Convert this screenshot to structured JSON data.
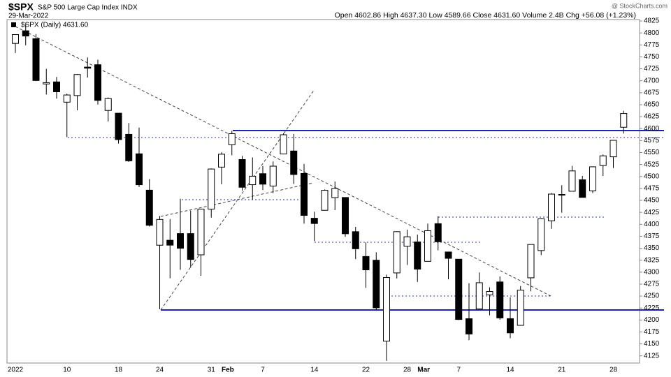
{
  "header": {
    "symbol": "$SPX",
    "name": "S&P 500 Large Cap Index INDX",
    "date": "29-Mar-2022",
    "quote": "Open 4602.86  High 4637.30  Low 4589.66  Close 4631.60  Volume 2.4B  Chg +56.08 (+1.23%)",
    "credit": "@ StockCharts.com",
    "legend": "$SPX (Daily) 4631.60"
  },
  "chart_data": {
    "type": "candlestick",
    "categories": [
      "2022",
      null,
      null,
      null,
      null,
      "10",
      null,
      null,
      null,
      null,
      "18",
      null,
      null,
      null,
      "24",
      null,
      null,
      null,
      null,
      "31",
      "Feb",
      null,
      null,
      null,
      "7",
      null,
      null,
      null,
      null,
      "14",
      null,
      null,
      null,
      null,
      "22",
      null,
      null,
      null,
      "28",
      "Mar",
      null,
      null,
      null,
      "7",
      null,
      null,
      null,
      null,
      "14",
      null,
      null,
      null,
      null,
      "21",
      null,
      null,
      null,
      null,
      "28",
      null
    ],
    "open": [
      4778.14,
      4804.51,
      4787.99,
      4693.39,
      4697.66,
      4655.34,
      4669.14,
      4728.59,
      4733.56,
      4637.99,
      4632.24,
      4588.03,
      4547.35,
      4471.38,
      4356.32,
      4366.64,
      4380.58,
      4380.5,
      4336.19,
      4431.79,
      4519.57,
      4566.39,
      4535.41,
      4482.79,
      4505.75,
      4480.02,
      4547.0,
      4553.24,
      4506.27,
      4412.61,
      4429.28,
      4455.75,
      4456.06,
      4384.57,
      4332.74,
      4324.93,
      4155.77,
      4298.38,
      4354.17,
      4363.14,
      4322.56,
      4401.31,
      4342.12,
      4327.01,
      4202.66,
      4223.1,
      4252.55,
      4279.5,
      4202.75,
      4188.82,
      4288.14,
      4345.11,
      4407.34,
      4462.4,
      4469.1,
      4493.1,
      4469.98,
      4522.91,
      4541.09,
      4602.86
    ],
    "high": [
      4796.64,
      4818.62,
      4797.7,
      4725.01,
      4707.95,
      4673.02,
      4714.13,
      4748.83,
      4744.13,
      4665.13,
      4632.24,
      4611.55,
      4602.11,
      4494.52,
      4417.35,
      4411.01,
      4453.23,
      4428.74,
      4432.72,
      4516.89,
      4550.49,
      4595.31,
      4542.88,
      4539.66,
      4521.86,
      4531.32,
      4590.03,
      4588.92,
      4526.33,
      4426.22,
      4472.77,
      4489.55,
      4456.06,
      4394.6,
      4362.12,
      4341.51,
      4294.73,
      4385.34,
      4388.84,
      4378.45,
      4401.48,
      4416.78,
      4342.12,
      4327.01,
      4276.94,
      4299.4,
      4268.28,
      4291.01,
      4247.57,
      4271.05,
      4357.86,
      4412.67,
      4465.4,
      4481.75,
      4522.0,
      4501.07,
      4520.58,
      4546.03,
      4575.65,
      4637.3
    ],
    "low": [
      4758.17,
      4774.27,
      4699.44,
      4671.26,
      4662.74,
      4582.24,
      4638.27,
      4706.71,
      4650.29,
      4614.75,
      4568.7,
      4530.2,
      4477.95,
      4395.34,
      4222.62,
      4287.11,
      4304.8,
      4309.5,
      4292.46,
      4414.02,
      4483.53,
      4544.32,
      4470.39,
      4451.5,
      4471.47,
      4465.4,
      4547.0,
      4484.31,
      4401.41,
      4364.84,
      4429.28,
      4429.68,
      4373.81,
      4327.22,
      4267.11,
      4221.51,
      4114.65,
      4286.83,
      4315.12,
      4279.54,
      4322.56,
      4345.56,
      4284.98,
      4199.85,
      4157.87,
      4223.1,
      4209.8,
      4200.49,
      4161.72,
      4187.9,
      4259.88,
      4335.65,
      4390.57,
      4424.3,
      4469.1,
      4455.81,
      4465.17,
      4501.07,
      4517.69,
      4589.66
    ],
    "close": [
      4796.56,
      4793.54,
      4700.58,
      4696.05,
      4677.03,
      4670.29,
      4713.07,
      4726.35,
      4659.03,
      4662.85,
      4577.11,
      4532.76,
      4482.73,
      4397.94,
      4410.13,
      4356.45,
      4349.93,
      4326.51,
      4431.85,
      4515.55,
      4546.54,
      4589.38,
      4477.44,
      4500.53,
      4483.87,
      4521.54,
      4587.18,
      4504.08,
      4418.64,
      4401.67,
      4471.07,
      4475.01,
      4380.26,
      4348.87,
      4304.76,
      4225.5,
      4288.7,
      4384.65,
      4373.94,
      4306.26,
      4386.54,
      4363.49,
      4328.87,
      4201.09,
      4170.7,
      4277.88,
      4259.52,
      4204.31,
      4173.11,
      4262.45,
      4357.86,
      4411.67,
      4463.12,
      4461.18,
      4511.61,
      4456.24,
      4520.16,
      4543.06,
      4575.52,
      4631.6
    ],
    "ylim": [
      4110,
      4828
    ],
    "yticks": [
      4125,
      4150,
      4175,
      4200,
      4225,
      4250,
      4275,
      4300,
      4325,
      4350,
      4375,
      4400,
      4425,
      4450,
      4475,
      4500,
      4525,
      4550,
      4575,
      4600,
      4625,
      4650,
      4675,
      4700,
      4725,
      4750,
      4775,
      4800,
      4825
    ],
    "up_color": "#ffffff",
    "down_color": "#000000"
  }
}
